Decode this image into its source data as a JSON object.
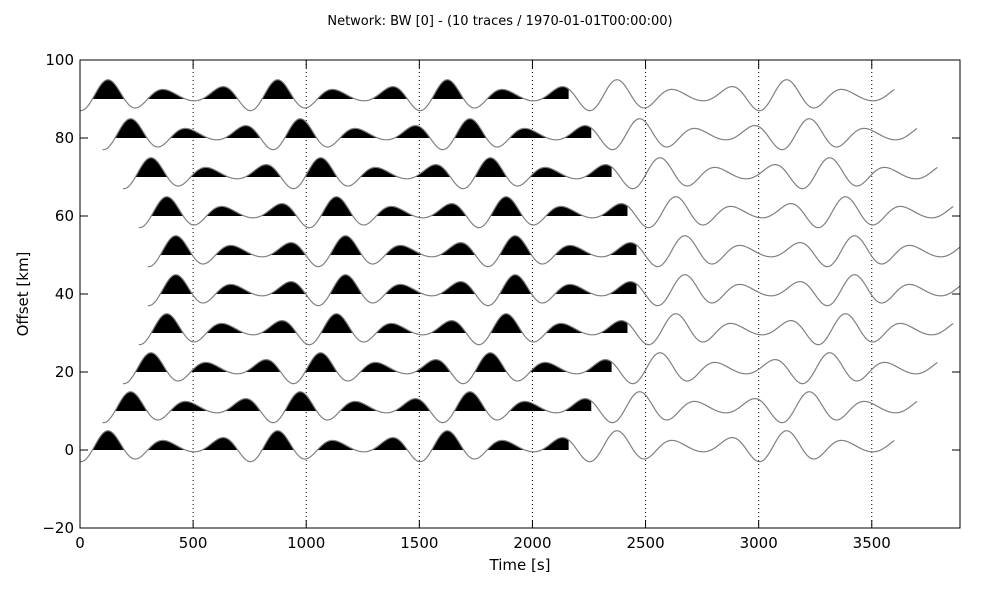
{
  "chart_data": {
    "type": "line",
    "title": "Network: BW [0] - (10 traces / 1970-01-01T00:00:00)",
    "xlabel": "Time [s]",
    "ylabel": "Offset [km]",
    "xlim": [
      0,
      3890
    ],
    "ylim": [
      -20,
      100
    ],
    "x_ticks": [
      0,
      500,
      1000,
      1500,
      2000,
      2500,
      3000,
      3500
    ],
    "x_tick_labels": [
      "0",
      "500",
      "1000",
      "1500",
      "2000",
      "2500",
      "3000",
      "3500"
    ],
    "y_ticks": [
      -20,
      0,
      20,
      40,
      60,
      80,
      100
    ],
    "y_tick_labels": [
      "−20",
      "0",
      "20",
      "40",
      "60",
      "80",
      "100"
    ],
    "grid": "x-dotted",
    "fill_positive": true,
    "trace_color": "#808080",
    "fill_color": "#000000",
    "wave": {
      "period_s": 250,
      "amplitude_km": 4,
      "envelope_period_s": 750
    },
    "traces": [
      {
        "offset_km": 0,
        "start_s": 0,
        "end_s": 3600
      },
      {
        "offset_km": 10,
        "start_s": 100,
        "end_s": 3700
      },
      {
        "offset_km": 20,
        "start_s": 190,
        "end_s": 3790
      },
      {
        "offset_km": 30,
        "start_s": 260,
        "end_s": 3860
      },
      {
        "offset_km": 40,
        "start_s": 300,
        "end_s": 3900
      },
      {
        "offset_km": 50,
        "start_s": 300,
        "end_s": 3900
      },
      {
        "offset_km": 60,
        "start_s": 260,
        "end_s": 3860
      },
      {
        "offset_km": 70,
        "start_s": 190,
        "end_s": 3790
      },
      {
        "offset_km": 80,
        "start_s": 100,
        "end_s": 3700
      },
      {
        "offset_km": 90,
        "start_s": 0,
        "end_s": 3600
      }
    ]
  }
}
